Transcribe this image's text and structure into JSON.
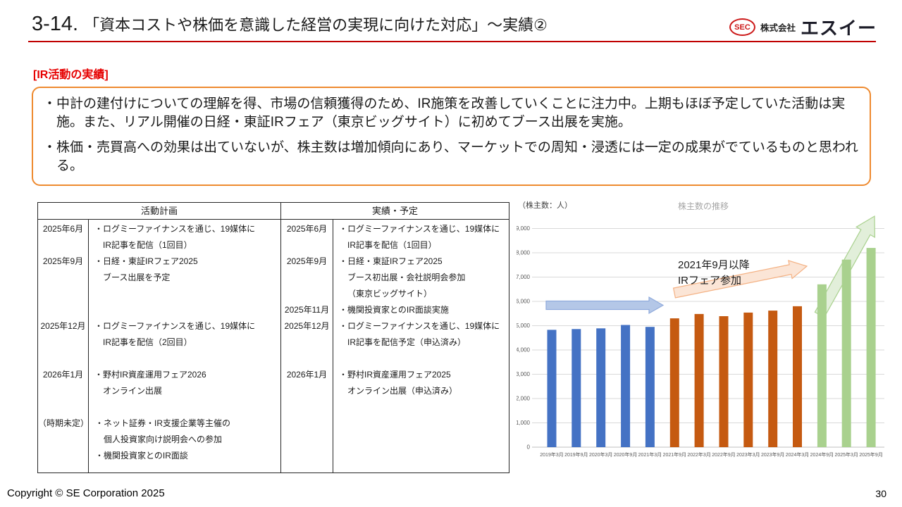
{
  "header": {
    "title_number": "3-14.",
    "title_text": "「資本コストや株価を意識した経営の実現に向けた対応」～実績②"
  },
  "logo": {
    "badge": "SEC",
    "prefix": "株式会社",
    "name": "エスイー"
  },
  "section_label": "[IR活動の実績]",
  "summary": {
    "bullets": [
      "・中計の建付けについての理解を得、市場の信頼獲得のため、IR施策を改善していくことに注力中。上期もほぼ予定していた活動は実施。また、リアル開催の日経・東証IRフェア（東京ビッグサイト）に初めてブース出展を実施。",
      "・株価・売買高への効果は出ていないが、株主数は増加傾向にあり、マーケットでの周知・浸透には一定の成果がでているものと思われる。"
    ]
  },
  "table": {
    "plan": {
      "header": "活動計画",
      "rows": [
        {
          "date": "2025年6月",
          "blank_lines_before": 0,
          "lines": [
            "・ログミーファイナンスを通じ、19媒体に",
            "IR記事を配信（1回目）"
          ]
        },
        {
          "date": "2025年9月",
          "blank_lines_before": 0,
          "lines": [
            "・日経・東証IRフェア2025",
            "ブース出展を予定"
          ]
        },
        {
          "date": "2025年12月",
          "blank_lines_before": 2,
          "lines": [
            "・ログミーファイナンスを通じ、19媒体に",
            "IR記事を配信（2回目）"
          ]
        },
        {
          "date": "2026年1月",
          "blank_lines_before": 1,
          "lines": [
            "・野村IR資産運用フェア2026",
            "オンライン出展"
          ]
        },
        {
          "date": "（時期未定）",
          "blank_lines_before": 1,
          "lines": [
            "・ネット証券・IR支援企業等主催の",
            "個人投資家向け説明会への参加",
            "・機関投資家とのIR面談"
          ]
        }
      ]
    },
    "actual": {
      "header": "実績・予定",
      "rows": [
        {
          "date": "2025年6月",
          "blank_lines_before": 0,
          "lines": [
            "・ログミーファイナンスを通じ、19媒体に",
            "IR記事を配信（1回目）"
          ]
        },
        {
          "date": "2025年9月",
          "blank_lines_before": 0,
          "lines": [
            "・日経・東証IRフェア2025",
            "ブース初出展・会社説明会参加",
            "（東京ビッグサイト）"
          ]
        },
        {
          "date": "2025年11月",
          "blank_lines_before": 0,
          "lines": [
            "・機関投資家とのIR面談実施"
          ]
        },
        {
          "date": "2025年12月",
          "blank_lines_before": 0,
          "lines": [
            "・ログミーファイナンスを通じ、19媒体に",
            "IR記事を配信予定（申込済み）"
          ]
        },
        {
          "date": "2026年1月",
          "blank_lines_before": 1,
          "lines": [
            "・野村IR資産運用フェア2025",
            "オンライン出展（申込済み）"
          ]
        }
      ]
    }
  },
  "chart": {
    "unit_label": "（株主数：人）",
    "title": "株主数の推移",
    "annotation_line1": "2021年9月以降",
    "annotation_line2": "IRフェア参加",
    "colors": {
      "grid": "#D9D9D9",
      "axis": "#BFBFBF",
      "tick_text": "#595959",
      "arrow_blue_fill": "#B4C7E7",
      "arrow_blue_stroke": "#8FAADC",
      "arrow_orange_fill": "#FBE5D6",
      "arrow_orange_stroke": "#F4B183",
      "arrow_green_fill": "#E2EFDA",
      "arrow_green_stroke": "#A9D18E"
    }
  },
  "chart_data": {
    "type": "bar",
    "title": "株主数の推移",
    "ylabel": "株主数：人",
    "xlabel": "",
    "categories": [
      "2019年3月",
      "2019年9月",
      "2020年3月",
      "2020年9月",
      "2021年3月",
      "2021年9月",
      "2022年3月",
      "2022年9月",
      "2023年3月",
      "2023年9月",
      "2024年3月",
      "2024年9月",
      "2025年3月",
      "2025年9月"
    ],
    "values": [
      4830,
      4860,
      4890,
      5030,
      4950,
      5300,
      5480,
      5390,
      5540,
      5620,
      5800,
      6700,
      7720,
      8200
    ],
    "bar_colors": [
      "#4472C4",
      "#4472C4",
      "#4472C4",
      "#4472C4",
      "#4472C4",
      "#C55A11",
      "#C55A11",
      "#C55A11",
      "#C55A11",
      "#C55A11",
      "#C55A11",
      "#A9D18E",
      "#A9D18E",
      "#A9D18E"
    ],
    "ylim": [
      0,
      9000
    ],
    "ytick_step": 1000,
    "grid": true,
    "legend": false,
    "annotations": [
      "2021年9月以降 IRフェア参加"
    ]
  },
  "footer": {
    "copyright": "Copyright © SE Corporation 2025",
    "page": "30"
  }
}
